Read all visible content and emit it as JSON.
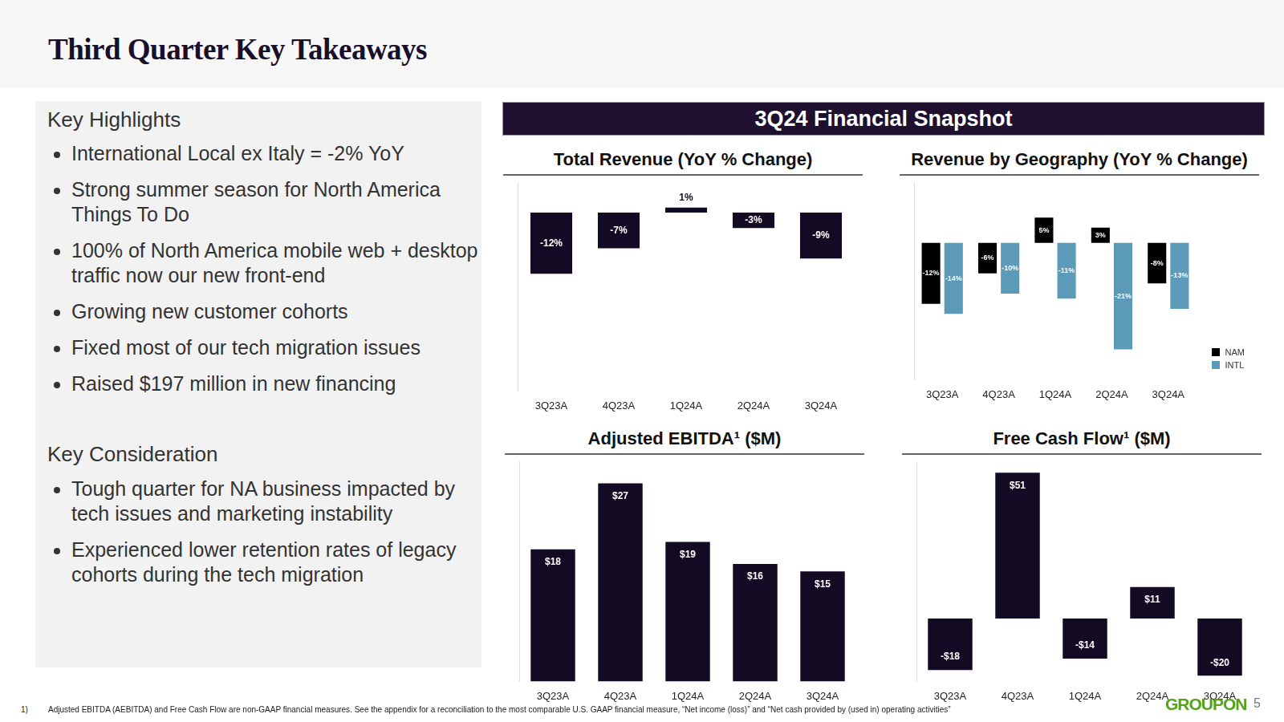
{
  "header": {
    "title": "Third Quarter Key Takeaways"
  },
  "highlights": {
    "title": "Key Highlights",
    "items": [
      "International Local ex Italy = -2% YoY",
      "Strong summer season for North America Things To Do",
      "100% of North America mobile web + desktop traffic now our new front-end",
      "Growing new customer cohorts",
      "Fixed most of our tech migration issues",
      "Raised $197 million in new financing"
    ]
  },
  "considerations": {
    "title": "Key Consideration",
    "items": [
      "Tough quarter for NA business impacted by tech issues and marketing instability",
      "Experienced lower retention rates of legacy cohorts during the tech migration"
    ]
  },
  "snapshot": {
    "title": "3Q24 Financial Snapshot"
  },
  "chart_data": [
    {
      "type": "bar",
      "title": "Total Revenue (YoY % Change)",
      "categories": [
        "3Q23A",
        "4Q23A",
        "1Q24A",
        "2Q24A",
        "3Q24A"
      ],
      "values": [
        -12,
        -7,
        1,
        -3,
        -9
      ],
      "value_labels": [
        "-12%",
        "-7%",
        "1%",
        "-3%",
        "-9%"
      ],
      "color": "#130b24",
      "ylim": [
        -35,
        6
      ],
      "grid": false,
      "data_labels": true,
      "tick_labels": "x"
    },
    {
      "type": "bar",
      "title": "Revenue by Geography (YoY % Change)",
      "categories": [
        "3Q23A",
        "4Q23A",
        "1Q24A",
        "2Q24A",
        "3Q24A"
      ],
      "series": [
        {
          "name": "NAM",
          "color": "#000000",
          "values": [
            -12,
            -6,
            5,
            3,
            -8
          ],
          "value_labels": [
            "-12%",
            "-6%",
            "5%",
            "3%",
            "-8%"
          ]
        },
        {
          "name": "INTL",
          "color": "#5b9ab8",
          "values": [
            -14,
            -10,
            -11,
            -21,
            -13
          ],
          "value_labels": [
            "-14%",
            "-10%",
            "-11%",
            "-21%",
            "-13%"
          ]
        }
      ],
      "ylim": [
        -27,
        12
      ],
      "grid": false,
      "data_labels": true,
      "tick_labels": "x",
      "legend": "lower right"
    },
    {
      "type": "bar",
      "title": "Adjusted EBITDA¹ ($M)",
      "categories": [
        "3Q23A",
        "4Q23A",
        "1Q24A",
        "2Q24A",
        "3Q24A"
      ],
      "values": [
        18,
        27,
        19,
        16,
        15
      ],
      "value_labels": [
        "$18",
        "$27",
        "$19",
        "$16",
        "$15"
      ],
      "color": "#130b24",
      "ylim": [
        0,
        30
      ],
      "grid": false,
      "data_labels": true,
      "tick_labels": "x"
    },
    {
      "type": "bar",
      "title": "Free Cash Flow¹ ($M)",
      "categories": [
        "3Q23A",
        "4Q23A",
        "1Q24A",
        "2Q24A",
        "3Q24A"
      ],
      "values": [
        -18,
        51,
        -14,
        11,
        -20
      ],
      "value_labels": [
        "-$18",
        "$51",
        "-$14",
        "$11",
        "-$20"
      ],
      "color": "#130b24",
      "ylim": [
        -22,
        55
      ],
      "grid": false,
      "data_labels": true,
      "tick_labels": "x"
    }
  ],
  "footer": {
    "footnote_marker": "1)",
    "footnote": "Adjusted EBITDA (AEBITDA) and Free Cash Flow are non-GAAP financial measures. See the appendix for a reconciliation to the most comparable U.S. GAAP financial measure, “Net income (loss)” and “Net cash provided by (used in) operating activities”",
    "logo": "GROUPON",
    "page": "5"
  }
}
